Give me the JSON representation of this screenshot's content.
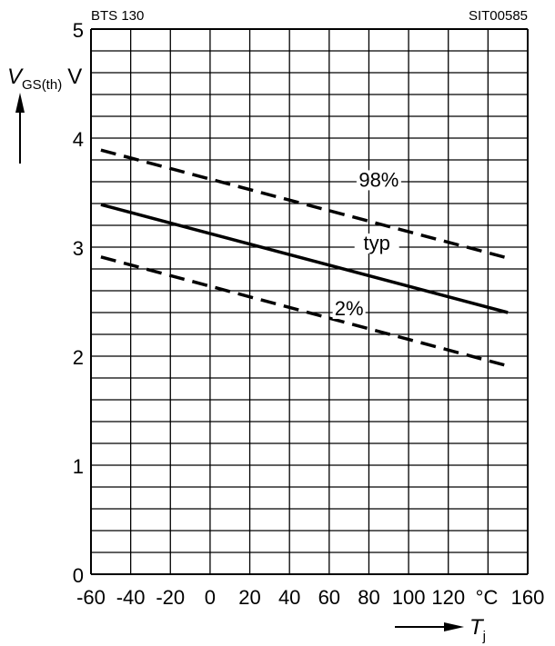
{
  "chart_data": {
    "type": "line",
    "header_left": "BTS 130",
    "header_right": "SIT00585",
    "ylabel": {
      "main": "V",
      "sub": "GS(th)",
      "unit": "V"
    },
    "xlabel": {
      "main": "T",
      "sub": "j"
    },
    "x_unit": "°C",
    "xlim": [
      -60,
      160
    ],
    "ylim": [
      0,
      5
    ],
    "x_ticks": [
      -60,
      -40,
      -20,
      0,
      20,
      40,
      60,
      80,
      100,
      120,
      160
    ],
    "x_tick_labels": [
      "-60",
      "-40",
      "-20",
      "0",
      "20",
      "40",
      "60",
      "80",
      "100",
      "120",
      "160"
    ],
    "y_ticks": [
      0,
      1,
      2,
      3,
      4,
      5
    ],
    "y_tick_labels": [
      "0",
      "1",
      "2",
      "3",
      "4",
      "5"
    ],
    "x_grid_step": 20,
    "y_grid_step": 0.2,
    "grid": true,
    "series": [
      {
        "name": "98%",
        "style": "dashed",
        "x": [
          -55,
          150
        ],
        "y": [
          3.89,
          2.9
        ]
      },
      {
        "name": "typ",
        "style": "solid",
        "x": [
          -55,
          150
        ],
        "y": [
          3.39,
          2.4
        ]
      },
      {
        "name": "2%",
        "style": "dashed",
        "x": [
          -55,
          150
        ],
        "y": [
          2.91,
          1.91
        ]
      }
    ]
  }
}
